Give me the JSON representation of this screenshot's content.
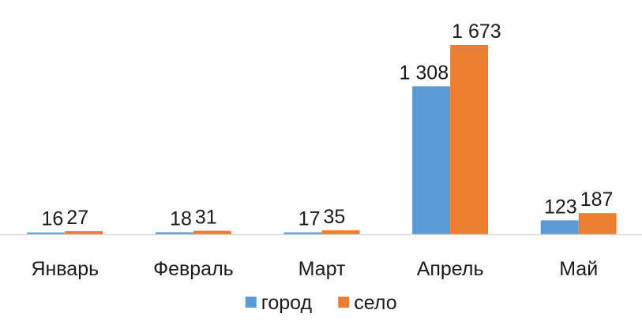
{
  "chart_data": {
    "type": "bar",
    "title": "",
    "xlabel": "",
    "ylabel": "",
    "categories": [
      "Январь",
      "Февраль",
      "Март",
      "Апрель",
      "Май"
    ],
    "series": [
      {
        "name": "город",
        "color": "#5B9BD5",
        "values": [
          16,
          18,
          17,
          1308,
          123
        ],
        "labels": [
          "16",
          "18",
          "17",
          "1 308",
          "123"
        ]
      },
      {
        "name": "село",
        "color": "#ED7D31",
        "values": [
          27,
          31,
          35,
          1673,
          187
        ],
        "labels": [
          "27",
          "31",
          "35",
          "1 673",
          "187"
        ]
      }
    ],
    "ylim": [
      0,
      1673
    ],
    "grid": false,
    "y_axis_visible": false,
    "legend_position": "bottom",
    "data_labels": true
  }
}
